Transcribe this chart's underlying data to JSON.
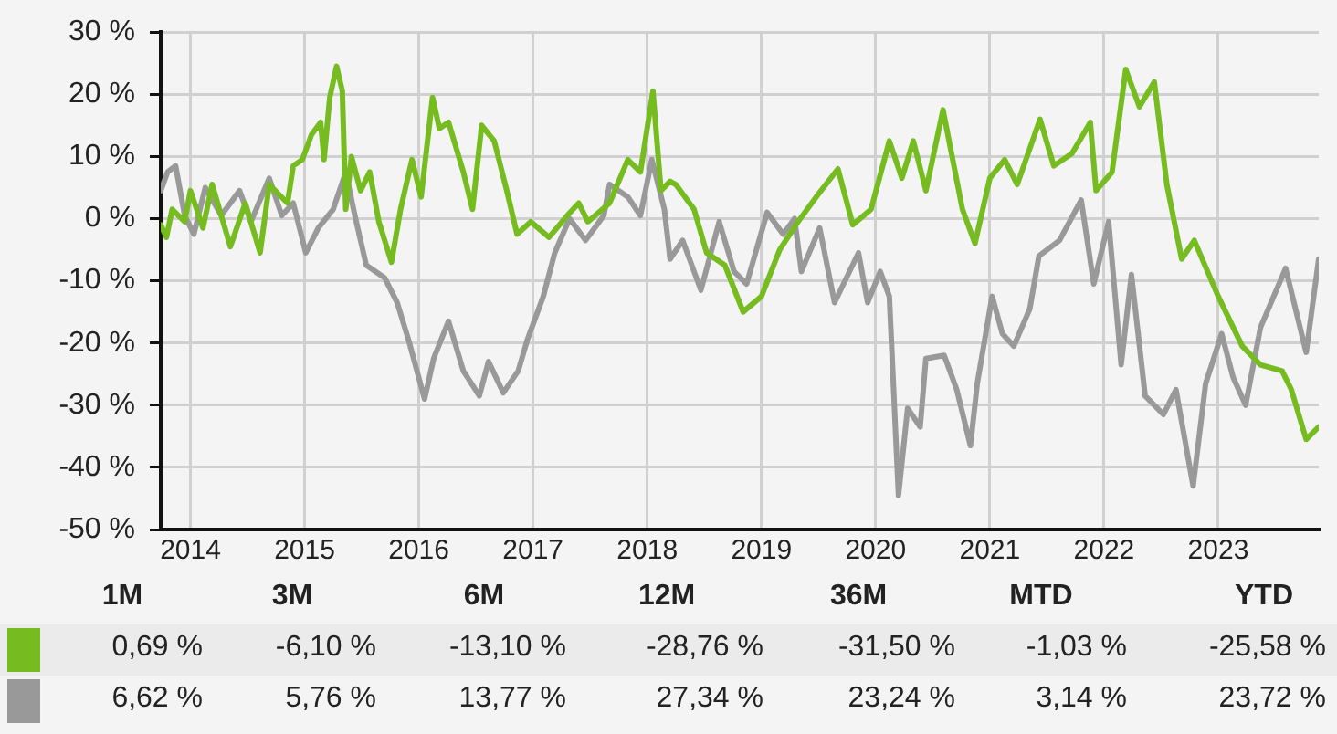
{
  "chart_data": {
    "type": "line",
    "xlim": [
      2013.74,
      2023.88
    ],
    "xticks": [
      2014,
      2015,
      2016,
      2017,
      2018,
      2019,
      2020,
      2021,
      2022,
      2023
    ],
    "ylim": [
      -50,
      30
    ],
    "yticks": [
      {
        "value": -50,
        "label": "-50 %"
      },
      {
        "value": -40,
        "label": "-40 %"
      },
      {
        "value": -30,
        "label": "-30 %"
      },
      {
        "value": -20,
        "label": "-20 %"
      },
      {
        "value": -10,
        "label": "-10 %"
      },
      {
        "value": 0,
        "label": "0 %"
      },
      {
        "value": 10,
        "label": "10 %"
      },
      {
        "value": 20,
        "label": "20 %"
      },
      {
        "value": 30,
        "label": "30 %"
      }
    ],
    "grid": true,
    "legend": false,
    "marker": "none",
    "line_style": "solid",
    "series": [
      {
        "color": "#76bc21",
        "x": [
          2013.74,
          2013.79,
          2013.84,
          2013.95,
          2014.0,
          2014.11,
          2014.19,
          2014.35,
          2014.48,
          2014.61,
          2014.69,
          2014.85,
          2014.9,
          2014.98,
          2015.06,
          2015.14,
          2015.17,
          2015.22,
          2015.28,
          2015.33,
          2015.36,
          2015.41,
          2015.49,
          2015.57,
          2015.65,
          2015.76,
          2015.84,
          2015.94,
          2016.02,
          2016.12,
          2016.18,
          2016.26,
          2016.39,
          2016.47,
          2016.55,
          2016.66,
          2016.77,
          2016.86,
          2016.98,
          2017.14,
          2017.3,
          2017.4,
          2017.48,
          2017.67,
          2017.83,
          2017.94,
          2018.05,
          2018.12,
          2018.2,
          2018.25,
          2018.41,
          2018.52,
          2018.68,
          2018.84,
          2019.0,
          2019.16,
          2019.32,
          2019.48,
          2019.67,
          2019.8,
          2019.96,
          2020.12,
          2020.23,
          2020.33,
          2020.44,
          2020.59,
          2020.76,
          2020.87,
          2021.0,
          2021.13,
          2021.24,
          2021.44,
          2021.56,
          2021.72,
          2021.88,
          2021.93,
          2022.07,
          2022.19,
          2022.31,
          2022.44,
          2022.55,
          2022.68,
          2022.79,
          2023.0,
          2023.21,
          2023.37,
          2023.56,
          2023.64,
          2023.77,
          2023.88
        ],
        "values": [
          -1,
          -3,
          1.5,
          -0.5,
          4.5,
          -1.5,
          5.5,
          -4.5,
          2.5,
          -5.5,
          5.5,
          2.5,
          8.5,
          9.5,
          13.5,
          15.5,
          9.5,
          19.5,
          24.5,
          20.5,
          1.5,
          10,
          4.5,
          7.5,
          -0.5,
          -7,
          1.5,
          9.5,
          3.5,
          19.5,
          14.5,
          15.5,
          7.5,
          1.5,
          15,
          12.5,
          4.5,
          -2.5,
          -0.5,
          -3,
          0.5,
          2.5,
          -0.5,
          2.5,
          9.5,
          7.5,
          20.5,
          4.5,
          6,
          5.5,
          1.5,
          -5.5,
          -7.5,
          -15,
          -12.5,
          -5,
          -0.5,
          3.5,
          8,
          -1,
          1.5,
          12.5,
          6.5,
          12.5,
          4.5,
          17.5,
          1.5,
          -4,
          6.5,
          9.5,
          5.5,
          16,
          8.5,
          10.5,
          15.5,
          4.5,
          7.5,
          24,
          18,
          22,
          5.5,
          -6.5,
          -3.5,
          -12.5,
          -20.5,
          -23.5,
          -24.5,
          -27.5,
          -35.5,
          -33.5
        ]
      },
      {
        "color": "#999999",
        "x": [
          2013.74,
          2013.8,
          2013.87,
          2013.95,
          2014.03,
          2014.13,
          2014.27,
          2014.43,
          2014.53,
          2014.69,
          2014.8,
          2014.9,
          2015.01,
          2015.12,
          2015.25,
          2015.36,
          2015.44,
          2015.54,
          2015.7,
          2015.81,
          2015.91,
          2016.05,
          2016.13,
          2016.26,
          2016.39,
          2016.53,
          2016.61,
          2016.74,
          2016.87,
          2016.95,
          2017.09,
          2017.19,
          2017.32,
          2017.46,
          2017.62,
          2017.67,
          2017.83,
          2017.94,
          2018.04,
          2018.15,
          2018.2,
          2018.31,
          2018.47,
          2018.63,
          2018.76,
          2018.87,
          2019.05,
          2019.19,
          2019.29,
          2019.35,
          2019.51,
          2019.64,
          2019.85,
          2019.93,
          2020.04,
          2020.12,
          2020.2,
          2020.28,
          2020.39,
          2020.44,
          2020.6,
          2020.71,
          2020.83,
          2020.89,
          2021.02,
          2021.11,
          2021.21,
          2021.35,
          2021.43,
          2021.61,
          2021.8,
          2021.91,
          2022.04,
          2022.15,
          2022.24,
          2022.36,
          2022.52,
          2022.63,
          2022.78,
          2022.89,
          2023.03,
          2023.13,
          2023.24,
          2023.37,
          2023.59,
          2023.77,
          2023.88
        ],
        "values": [
          4.5,
          7.5,
          8.5,
          0.5,
          -2.5,
          5,
          0.5,
          4.5,
          -0.5,
          6.5,
          0.5,
          2.5,
          -5.5,
          -1.5,
          1.5,
          7.5,
          0.5,
          -7.5,
          -9.5,
          -13.5,
          -19.5,
          -29,
          -22.5,
          -16.5,
          -24.5,
          -28.5,
          -23,
          -28,
          -24.5,
          -19.5,
          -12.5,
          -5.5,
          0,
          -3.5,
          0.5,
          5.5,
          3.5,
          0.5,
          9.5,
          1.5,
          -6.5,
          -3.5,
          -11.5,
          -0.5,
          -8.5,
          -10.5,
          1,
          -2.5,
          0,
          -8.5,
          -1.5,
          -13.5,
          -5.5,
          -13.5,
          -8.5,
          -12.5,
          -44.5,
          -30.5,
          -33.5,
          -22.5,
          -22,
          -27.5,
          -36.5,
          -26.5,
          -12.5,
          -18.5,
          -20.5,
          -14.5,
          -6,
          -3.5,
          3,
          -10.5,
          -0.5,
          -23.5,
          -9,
          -28.5,
          -31.5,
          -27.5,
          -43,
          -26.5,
          -18.5,
          -25.5,
          -30,
          -17.5,
          -8,
          -21.5,
          -6.5
        ]
      }
    ],
    "annotations": [
      "1M",
      "3M",
      "6M",
      "12M",
      "36M",
      "MTD",
      "YTD",
      "0,69 %",
      "-6,10 %",
      "-13,10 %",
      "-28,76 %",
      "-31,50 %",
      "-1,03 %",
      "-25,58 %",
      "6,62 %",
      "5,76 %",
      "13,77 %",
      "27,34 %",
      "23,24 %",
      "3,14 %",
      "23,72 %"
    ]
  }
}
